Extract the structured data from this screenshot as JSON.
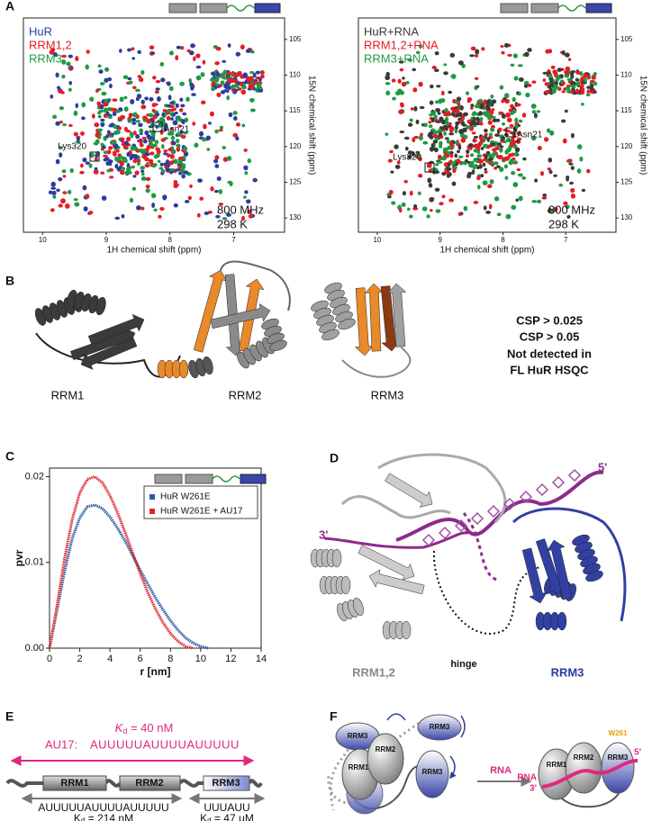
{
  "panel_labels": [
    "A",
    "B",
    "C",
    "D",
    "E",
    "F"
  ],
  "panel_a": {
    "spectra": [
      {
        "legend": [
          {
            "name": "HuR",
            "color": "#2a3d9e"
          },
          {
            "name": "RRM1,2",
            "color": "#e31d25"
          },
          {
            "name": "RRM3",
            "color": "#1e9a44"
          }
        ],
        "annotations": [
          "Lys320",
          "Asn21"
        ],
        "field": "800 MHz",
        "temperature": "298 K",
        "xlabel": "1H chemical shift (ppm)",
        "ylabel": "15N chemical shift (ppm)",
        "xlim": [
          10.3,
          6.2
        ],
        "xticks": [
          10,
          9,
          8,
          7
        ],
        "ylim": [
          102,
          132
        ],
        "yticks": [
          105,
          110,
          115,
          120,
          125,
          130
        ]
      },
      {
        "legend": [
          {
            "name": "HuR+RNA",
            "color": "#3a3a3a"
          },
          {
            "name": "RRM1,2+RNA",
            "color": "#e31d25"
          },
          {
            "name": "RRM3+RNA",
            "color": "#1e9a44"
          }
        ],
        "annotations": [
          "Lys320",
          "Asn21"
        ],
        "field": "800 MHz",
        "temperature": "298 K",
        "xlabel": "1H chemical shift (ppm)",
        "ylabel": "15N chemical shift (ppm)",
        "xlim": [
          10.3,
          6.2
        ],
        "xticks": [
          10,
          9,
          8,
          7
        ],
        "ylim": [
          102,
          132
        ],
        "yticks": [
          105,
          110,
          115,
          120,
          125,
          130
        ]
      }
    ]
  },
  "panel_b": {
    "domains": [
      "RRM1",
      "RRM2",
      "RRM3"
    ],
    "legend": [
      {
        "text": "CSP > 0.025",
        "color": "#e8892a"
      },
      {
        "text": "CSP > 0.05",
        "color": "#f4b142"
      },
      {
        "text": "Not detected in",
        "color": "#6b3f1c"
      },
      {
        "text": "FL HuR HSQC",
        "color": "#6b3f1c"
      }
    ]
  },
  "chart_data": {
    "type": "line",
    "xlabel": "r [nm]",
    "ylabel": "pvr",
    "x": [
      0,
      0.5,
      1,
      1.5,
      2,
      2.5,
      3,
      3.5,
      4,
      4.5,
      5,
      5.5,
      6,
      6.5,
      7,
      7.5,
      8,
      8.5,
      9,
      9.5,
      10,
      10.5
    ],
    "series": [
      {
        "name": "HuR W261E",
        "color": "#2c5aa8",
        "values": [
          0,
          0.0045,
          0.009,
          0.0128,
          0.0152,
          0.0165,
          0.0167,
          0.0163,
          0.0153,
          0.014,
          0.0125,
          0.0108,
          0.0091,
          0.0075,
          0.0059,
          0.0045,
          0.0032,
          0.0021,
          0.0012,
          0.0006,
          0.0002,
          0
        ]
      },
      {
        "name": "HuR W261E + AU17",
        "color": "#e0262a",
        "values": [
          0,
          0.005,
          0.0105,
          0.015,
          0.0181,
          0.0197,
          0.02,
          0.0193,
          0.0178,
          0.0158,
          0.0135,
          0.0111,
          0.0087,
          0.0065,
          0.0046,
          0.003,
          0.0017,
          0.0008,
          0.0002,
          0,
          null,
          null
        ]
      }
    ],
    "xlim": [
      0,
      14
    ],
    "xticks": [
      0,
      2,
      4,
      6,
      8,
      10,
      12,
      14
    ],
    "ylim": [
      0,
      0.021
    ],
    "yticks": [
      {
        "value": 0,
        "label": "0.00"
      },
      {
        "value": 0.01,
        "label": "0.01"
      },
      {
        "value": 0.02,
        "label": "0.02"
      }
    ]
  },
  "panel_d": {
    "labels": {
      "three_prime": "3'",
      "five_prime": "5'",
      "hinge": "hinge",
      "rrm12": "RRM1,2",
      "rrm3": "RRM3"
    }
  },
  "panel_e": {
    "kd_top": {
      "symbol": "K",
      "subscript": "d",
      "value": " = 40 nM"
    },
    "au17_label": "AU17:",
    "au17_sequence": "AUUUUUAUUUUAUUUUU",
    "domains": [
      "RRM1",
      "RRM2",
      "RRM3"
    ],
    "left_sequence": "AUUUUUAUUUUAUUUUU",
    "left_kd": {
      "symbol": "K",
      "subscript": "d",
      "value": " = 214 nM"
    },
    "right_sequence": "UUUAUU",
    "right_kd": {
      "symbol": "K",
      "subscript": "d",
      "value": " = 47 μM"
    }
  },
  "panel_f": {
    "left_domains": [
      "RRM3",
      "RRM3",
      "RRM2",
      "RRM1",
      "RRM3"
    ],
    "arrow_label": "RNA",
    "right_domains": [
      "RRM1",
      "RRM2",
      "RRM3"
    ],
    "residue": "W261",
    "rna_label": "RNA",
    "three_prime": "3'",
    "five_prime": "5'"
  }
}
